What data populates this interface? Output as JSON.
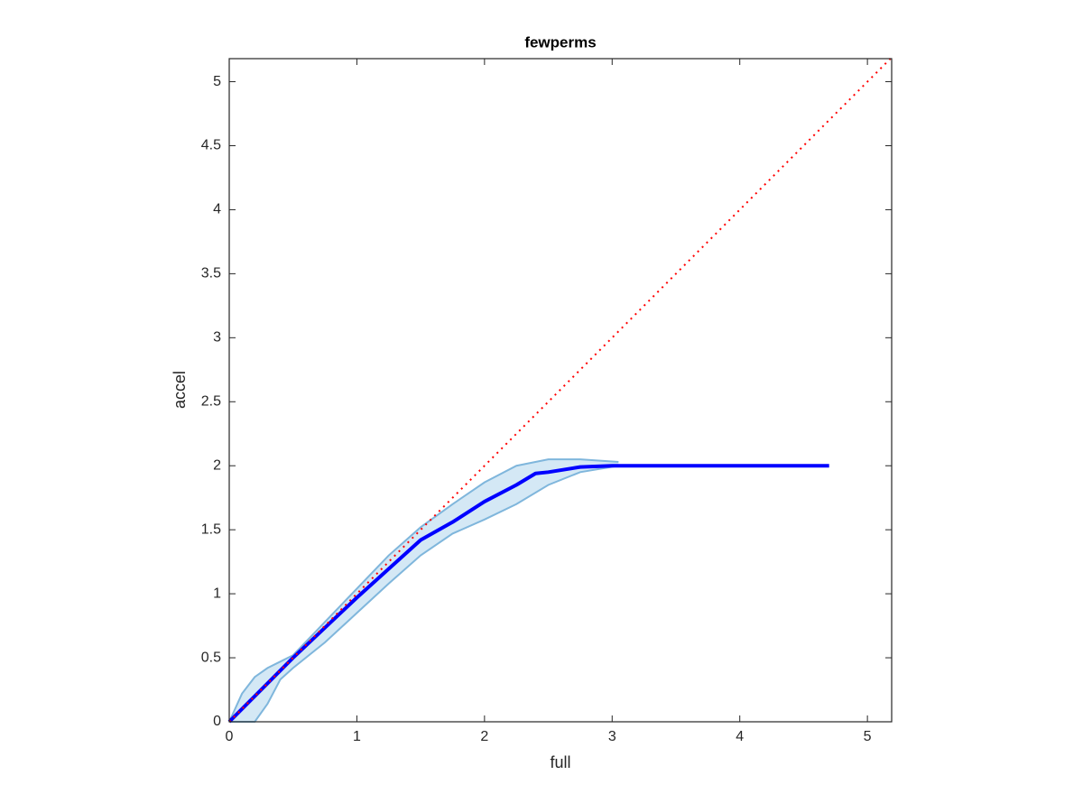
{
  "chart_data": {
    "type": "line",
    "title": "fewperms",
    "xlabel": "full",
    "ylabel": "accel",
    "xlim": [
      0,
      5.19
    ],
    "ylim": [
      0,
      5.18
    ],
    "xticks": [
      0,
      1,
      2,
      3,
      4,
      5
    ],
    "yticks": [
      0,
      0.5,
      1,
      1.5,
      2,
      2.5,
      3,
      3.5,
      4,
      4.5,
      5
    ],
    "band": {
      "color": "#9fcbe8",
      "edge_color": "#7fb6dc",
      "x": [
        0,
        0.1,
        0.2,
        0.3,
        0.4,
        0.5,
        0.75,
        1,
        1.25,
        1.5,
        1.75,
        2,
        2.25,
        2.5,
        2.75,
        3.05
      ],
      "upper": [
        0,
        0.22,
        0.35,
        0.42,
        0.47,
        0.52,
        0.78,
        1.04,
        1.3,
        1.52,
        1.7,
        1.87,
        2.0,
        2.05,
        2.05,
        2.03
      ],
      "lower": [
        0,
        0,
        0,
        0.14,
        0.33,
        0.42,
        0.62,
        0.85,
        1.08,
        1.3,
        1.47,
        1.58,
        1.7,
        1.85,
        1.95,
        2.0
      ]
    },
    "series": [
      {
        "color": "#0000ff",
        "x": [
          0,
          0.5,
          1,
          1.5,
          1.75,
          2,
          2.25,
          2.4,
          2.5,
          2.75,
          3,
          4.7
        ],
        "values": [
          0,
          0.5,
          0.97,
          1.42,
          1.56,
          1.72,
          1.85,
          1.94,
          1.95,
          1.99,
          2,
          2
        ]
      }
    ],
    "reference_line": {
      "color": "#ff0000",
      "style": "dotted"
    }
  }
}
